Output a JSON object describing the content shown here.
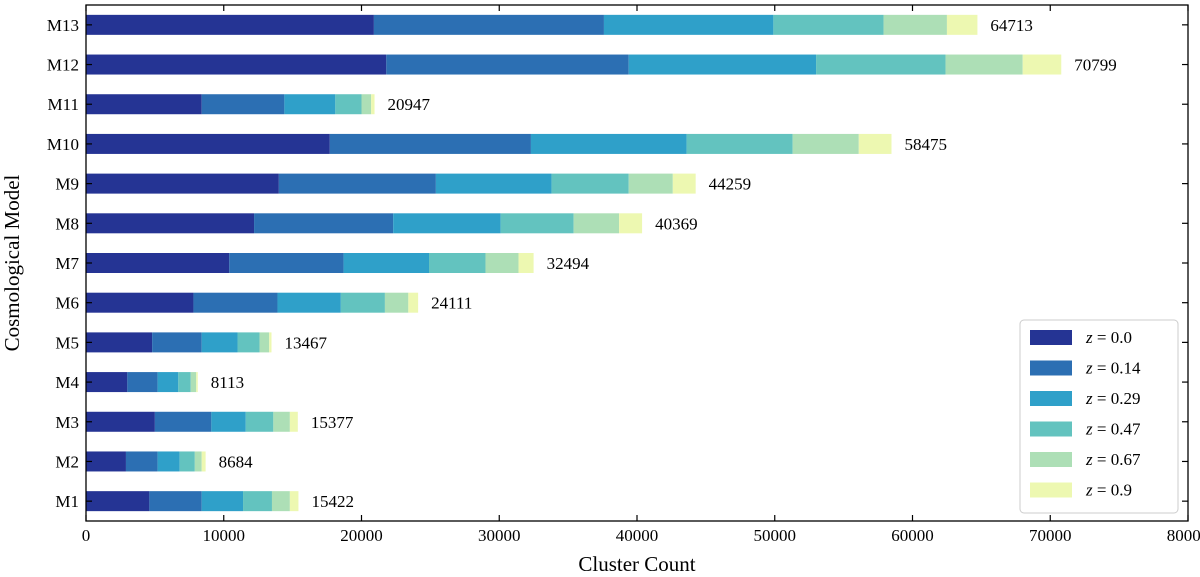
{
  "chart_data": {
    "type": "bar",
    "orientation": "horizontal",
    "stacked": true,
    "xlabel": "Cluster Count",
    "ylabel": "Cosmological Model",
    "xlim": [
      0,
      80000
    ],
    "xticks": [
      0,
      10000,
      20000,
      30000,
      40000,
      50000,
      60000,
      70000,
      80000
    ],
    "xtick_labels": [
      "0",
      "10000",
      "20000",
      "30000",
      "40000",
      "50000",
      "60000",
      "70000",
      "80000"
    ],
    "grid": false,
    "legend_position": "bottom-right",
    "categories": [
      "M1",
      "M2",
      "M3",
      "M4",
      "M5",
      "M6",
      "M7",
      "M8",
      "M9",
      "M10",
      "M11",
      "M12",
      "M13"
    ],
    "totals": [
      15422,
      8684,
      15377,
      8113,
      13467,
      24111,
      32494,
      40369,
      44259,
      58475,
      20947,
      70799,
      64713
    ],
    "total_labels": [
      "15422",
      "8684",
      "15377",
      "8113",
      "13467",
      "24111",
      "32494",
      "40369",
      "44259",
      "58475",
      "20947",
      "70799",
      "64713"
    ],
    "series": [
      {
        "legend_prefix": "z",
        "legend_value": "= 0.0",
        "color": "#253494",
        "values": [
          4600,
          2900,
          5000,
          3000,
          4800,
          7800,
          10400,
          12200,
          14000,
          17700,
          8400,
          21800,
          20900
        ]
      },
      {
        "legend_prefix": "z",
        "legend_value": "= 0.14",
        "color": "#2c6fb3",
        "values": [
          3800,
          2300,
          4100,
          2200,
          3600,
          6100,
          8300,
          10100,
          11400,
          14600,
          6000,
          17600,
          16700
        ]
      },
      {
        "legend_prefix": "z",
        "legend_value": "= 0.29",
        "color": "#2fa0c9",
        "values": [
          3000,
          1600,
          2500,
          1500,
          2600,
          4600,
          6200,
          7800,
          8400,
          11300,
          3700,
          13600,
          12300
        ]
      },
      {
        "legend_prefix": "z",
        "legend_value": "= 0.47",
        "color": "#63c3bf",
        "values": [
          2100,
          1100,
          2000,
          900,
          1600,
          3200,
          4100,
          5300,
          5600,
          7700,
          1900,
          9400,
          8000
        ]
      },
      {
        "legend_prefix": "z",
        "legend_value": "= 0.67",
        "color": "#addfb6",
        "values": [
          1300,
          500,
          1200,
          400,
          700,
          1700,
          2400,
          3300,
          3200,
          4800,
          700,
          5600,
          4600
        ]
      },
      {
        "legend_prefix": "z",
        "legend_value": "= 0.9",
        "color": "#edf8b1",
        "values": [
          622,
          284,
          577,
          113,
          167,
          711,
          1094,
          1669,
          1659,
          2375,
          247,
          2799,
          2213
        ]
      }
    ]
  }
}
